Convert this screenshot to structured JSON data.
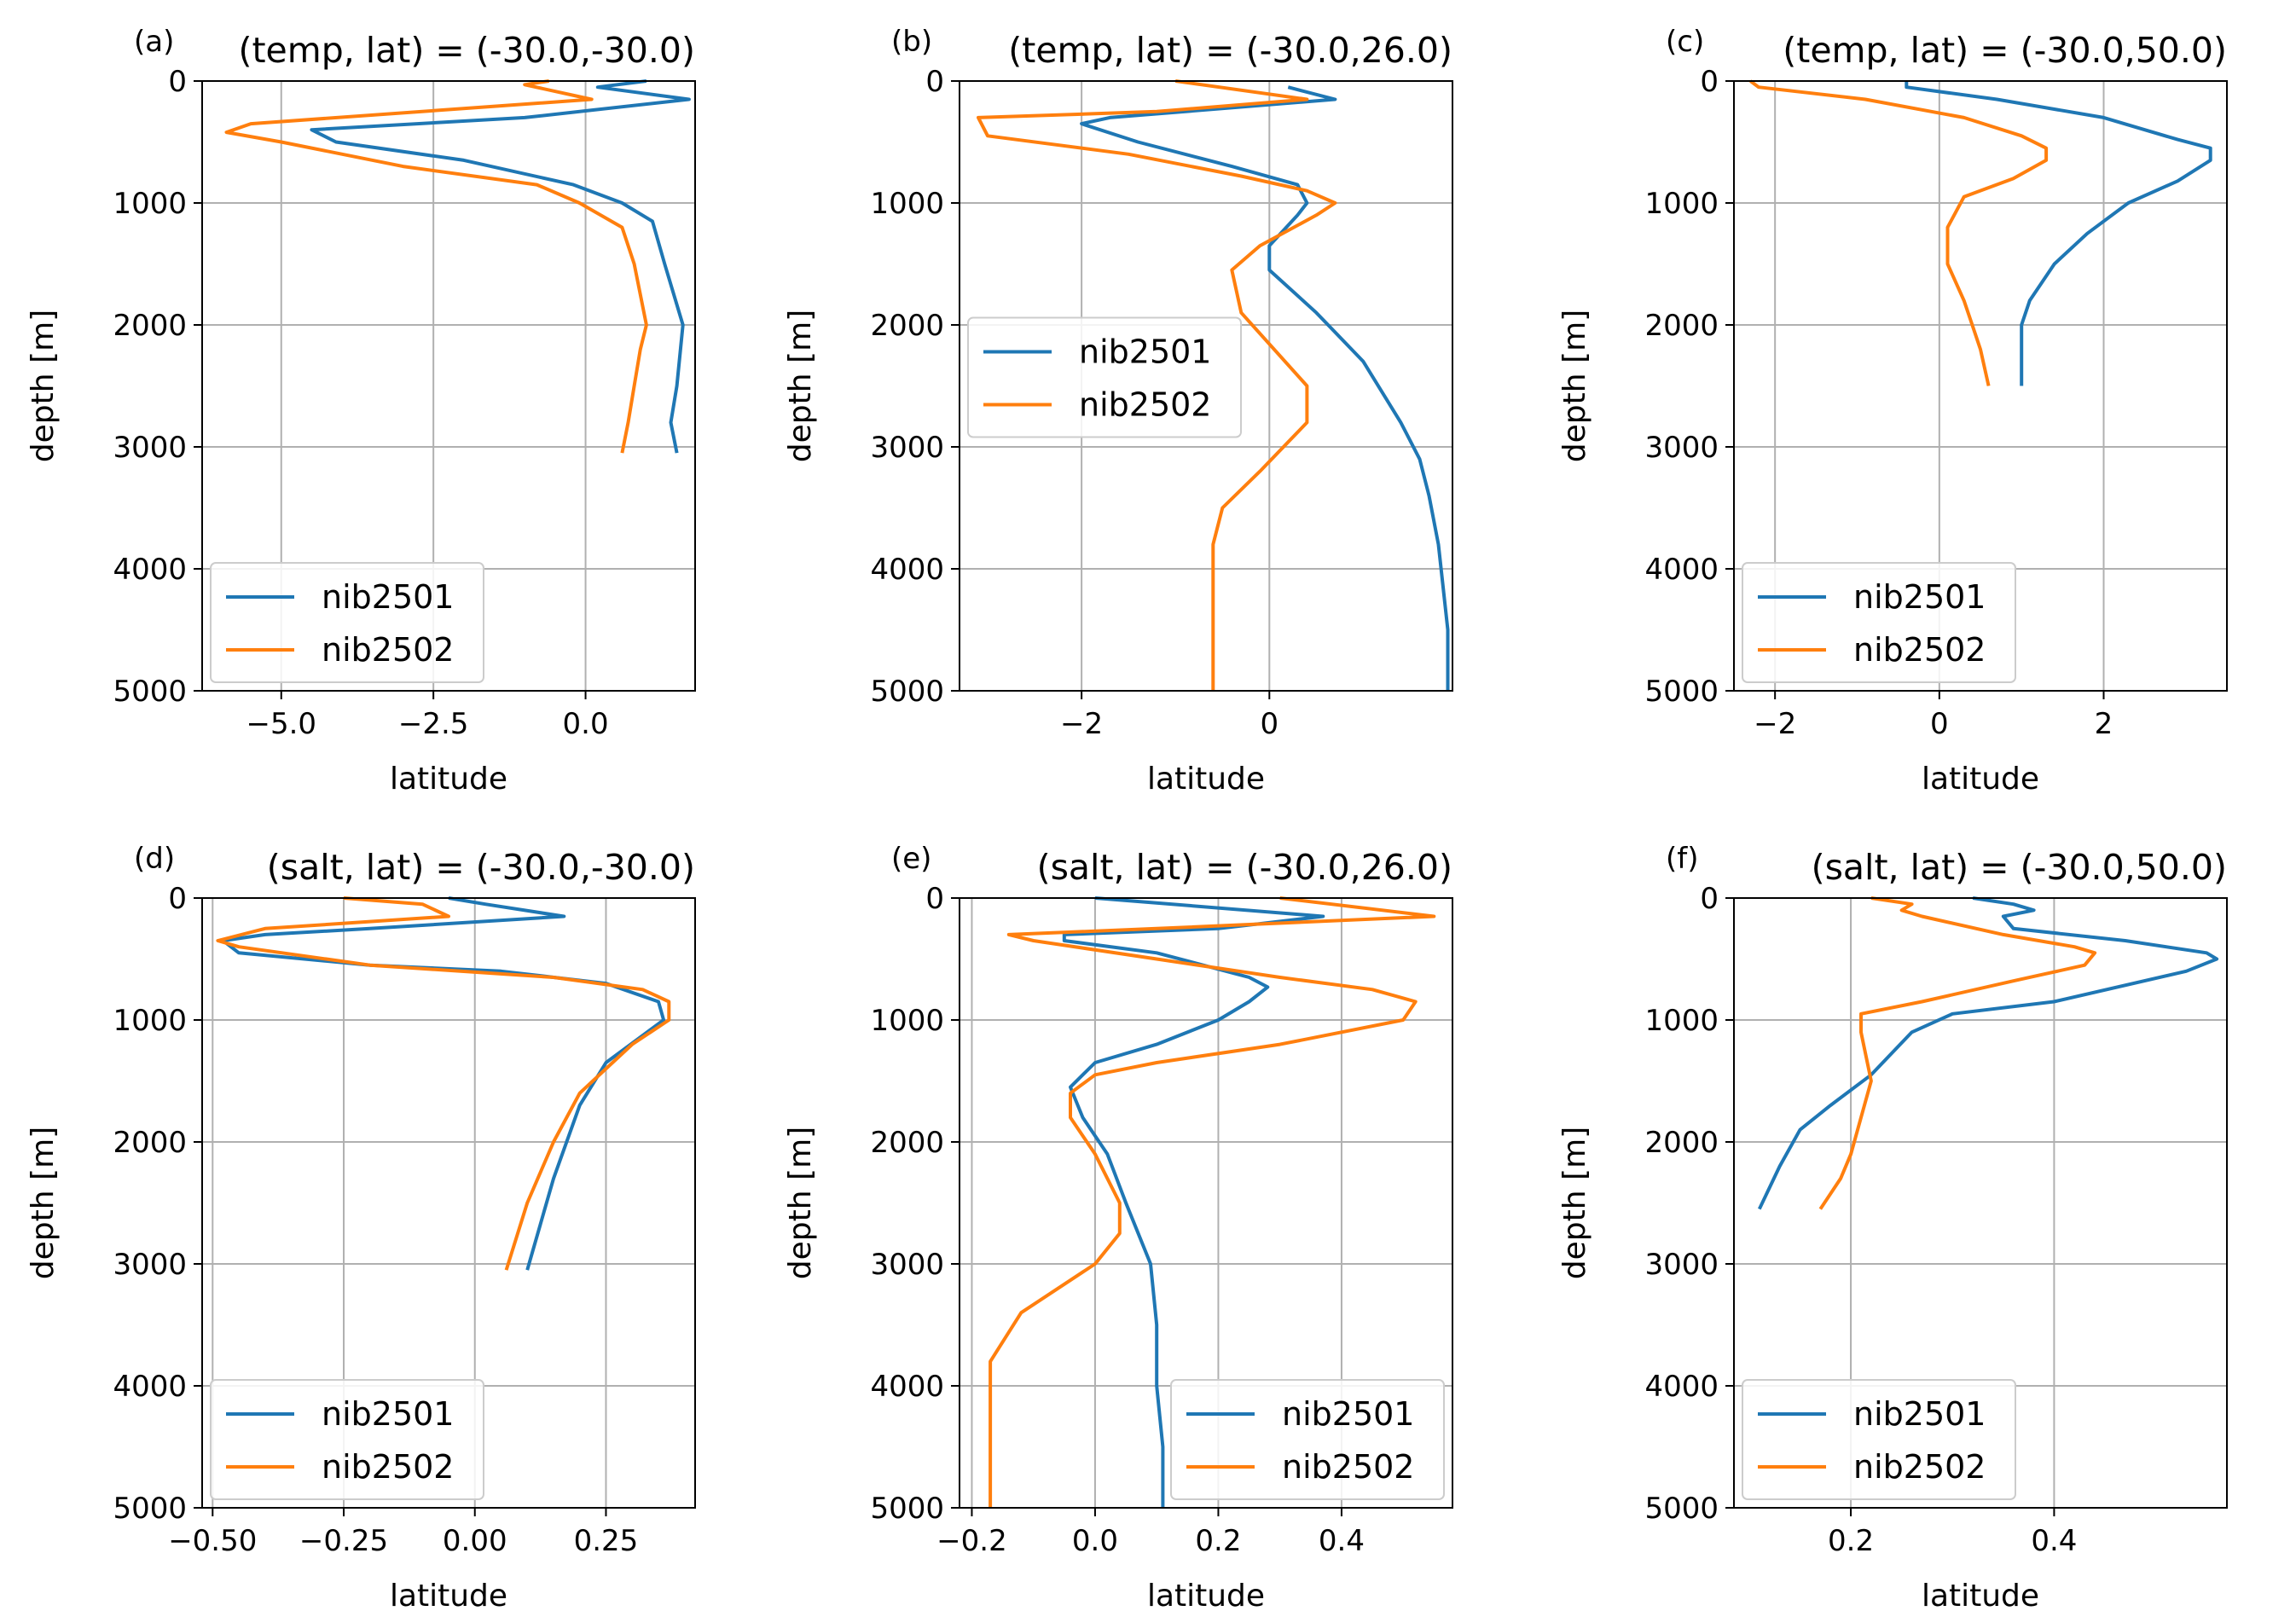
{
  "chart_data": [
    {
      "type": "line",
      "letter": "(a)",
      "title": "(temp, lat) = (-30.0,-30.0)",
      "xlabel": "latitude",
      "ylabel": "depth [m]",
      "xlim": [
        -6.3,
        1.8
      ],
      "ylim": [
        5000,
        0
      ],
      "xticks": [
        -5.0,
        -2.5,
        0.0
      ],
      "xtick_labels": [
        "−5.0",
        "−2.5",
        "0.0"
      ],
      "yticks": [
        0,
        1000,
        2000,
        3000,
        4000,
        5000
      ],
      "ytick_labels": [
        "0",
        "1000",
        "2000",
        "3000",
        "4000",
        "5000"
      ],
      "grid": true,
      "legend": "lower-left",
      "series": [
        {
          "name": "nib2501",
          "color": "#1f77b4",
          "points": [
            [
              1.0,
              0
            ],
            [
              0.2,
              50
            ],
            [
              1.7,
              150
            ],
            [
              -1.0,
              300
            ],
            [
              -4.5,
              400
            ],
            [
              -4.1,
              500
            ],
            [
              -2.0,
              650
            ],
            [
              -0.2,
              850
            ],
            [
              0.6,
              1000
            ],
            [
              1.1,
              1150
            ],
            [
              1.3,
              1500
            ],
            [
              1.6,
              2000
            ],
            [
              1.5,
              2500
            ],
            [
              1.4,
              2800
            ],
            [
              1.5,
              3050
            ]
          ]
        },
        {
          "name": "nib2502",
          "color": "#ff7f0e",
          "points": [
            [
              -0.6,
              0
            ],
            [
              -1.0,
              30
            ],
            [
              0.1,
              150
            ],
            [
              -5.5,
              350
            ],
            [
              -5.9,
              420
            ],
            [
              -5.0,
              500
            ],
            [
              -3.0,
              700
            ],
            [
              -0.8,
              850
            ],
            [
              -0.1,
              1000
            ],
            [
              0.6,
              1200
            ],
            [
              0.8,
              1500
            ],
            [
              1.0,
              2000
            ],
            [
              0.9,
              2200
            ],
            [
              0.8,
              2500
            ],
            [
              0.7,
              2800
            ],
            [
              0.6,
              3050
            ]
          ]
        }
      ]
    },
    {
      "type": "line",
      "letter": "(b)",
      "title": "(temp, lat) = (-30.0,26.0)",
      "xlabel": "latitude",
      "ylabel": "depth [m]",
      "xlim": [
        -3.3,
        1.95
      ],
      "ylim": [
        5000,
        0
      ],
      "xticks": [
        -2,
        0
      ],
      "xtick_labels": [
        "−2",
        "0"
      ],
      "yticks": [
        0,
        1000,
        2000,
        3000,
        4000,
        5000
      ],
      "ytick_labels": [
        "0",
        "1000",
        "2000",
        "3000",
        "4000",
        "5000"
      ],
      "grid": true,
      "legend": "center-left",
      "series": [
        {
          "name": "nib2501",
          "color": "#1f77b4",
          "points": [
            [
              0.2,
              50
            ],
            [
              0.7,
              150
            ],
            [
              -1.7,
              300
            ],
            [
              -2.0,
              350
            ],
            [
              -1.4,
              500
            ],
            [
              -0.4,
              700
            ],
            [
              0.3,
              850
            ],
            [
              0.4,
              1000
            ],
            [
              0.3,
              1100
            ],
            [
              0.0,
              1350
            ],
            [
              0.0,
              1550
            ],
            [
              0.5,
              1900
            ],
            [
              1.0,
              2300
            ],
            [
              1.4,
              2800
            ],
            [
              1.6,
              3100
            ],
            [
              1.7,
              3400
            ],
            [
              1.8,
              3800
            ],
            [
              1.9,
              4500
            ],
            [
              1.9,
              5000
            ]
          ]
        },
        {
          "name": "nib2502",
          "color": "#ff7f0e",
          "points": [
            [
              -1.0,
              0
            ],
            [
              0.4,
              150
            ],
            [
              -1.2,
              250
            ],
            [
              -3.1,
              300
            ],
            [
              -3.0,
              450
            ],
            [
              -1.5,
              600
            ],
            [
              -0.3,
              780
            ],
            [
              0.4,
              900
            ],
            [
              0.7,
              1000
            ],
            [
              0.5,
              1100
            ],
            [
              -0.1,
              1350
            ],
            [
              -0.4,
              1550
            ],
            [
              -0.3,
              1900
            ],
            [
              0.4,
              2500
            ],
            [
              0.4,
              2800
            ],
            [
              -0.1,
              3200
            ],
            [
              -0.5,
              3500
            ],
            [
              -0.6,
              3800
            ],
            [
              -0.6,
              4200
            ],
            [
              -0.6,
              5000
            ]
          ]
        }
      ]
    },
    {
      "type": "line",
      "letter": "(c)",
      "title": "(temp, lat) = (-30.0,50.0)",
      "xlabel": "latitude",
      "ylabel": "depth [m]",
      "xlim": [
        -2.5,
        3.5
      ],
      "ylim": [
        5000,
        0
      ],
      "xticks": [
        -2,
        0,
        2
      ],
      "xtick_labels": [
        "−2",
        "0",
        "2"
      ],
      "yticks": [
        0,
        1000,
        2000,
        3000,
        4000,
        5000
      ],
      "ytick_labels": [
        "0",
        "1000",
        "2000",
        "3000",
        "4000",
        "5000"
      ],
      "grid": true,
      "legend": "lower-left",
      "series": [
        {
          "name": "nib2501",
          "color": "#1f77b4",
          "points": [
            [
              -0.4,
              0
            ],
            [
              -0.4,
              50
            ],
            [
              0.7,
              150
            ],
            [
              2.0,
              300
            ],
            [
              2.9,
              480
            ],
            [
              3.3,
              550
            ],
            [
              3.3,
              650
            ],
            [
              2.9,
              820
            ],
            [
              2.3,
              1000
            ],
            [
              1.8,
              1250
            ],
            [
              1.4,
              1500
            ],
            [
              1.1,
              1800
            ],
            [
              1.0,
              2000
            ],
            [
              1.0,
              2200
            ],
            [
              1.0,
              2500
            ]
          ]
        },
        {
          "name": "nib2502",
          "color": "#ff7f0e",
          "points": [
            [
              -2.3,
              0
            ],
            [
              -2.2,
              50
            ],
            [
              -0.9,
              150
            ],
            [
              0.3,
              300
            ],
            [
              1.0,
              450
            ],
            [
              1.3,
              550
            ],
            [
              1.3,
              650
            ],
            [
              0.9,
              800
            ],
            [
              0.3,
              950
            ],
            [
              0.1,
              1200
            ],
            [
              0.1,
              1500
            ],
            [
              0.3,
              1800
            ],
            [
              0.4,
              2000
            ],
            [
              0.5,
              2200
            ],
            [
              0.6,
              2500
            ]
          ]
        }
      ]
    },
    {
      "type": "line",
      "letter": "(d)",
      "title": "(salt, lat) = (-30.0,-30.0)",
      "xlabel": "latitude",
      "ylabel": "depth [m]",
      "xlim": [
        -0.52,
        0.42
      ],
      "ylim": [
        5000,
        0
      ],
      "xticks": [
        -0.5,
        -0.25,
        0.0,
        0.25
      ],
      "xtick_labels": [
        "−0.50",
        "−0.25",
        "0.00",
        "0.25"
      ],
      "yticks": [
        0,
        1000,
        2000,
        3000,
        4000,
        5000
      ],
      "ytick_labels": [
        "0",
        "1000",
        "2000",
        "3000",
        "4000",
        "5000"
      ],
      "grid": true,
      "legend": "lower-left",
      "series": [
        {
          "name": "nib2501",
          "color": "#1f77b4",
          "points": [
            [
              -0.05,
              0
            ],
            [
              0.02,
              50
            ],
            [
              0.17,
              150
            ],
            [
              -0.2,
              250
            ],
            [
              -0.4,
              300
            ],
            [
              -0.48,
              350
            ],
            [
              -0.45,
              450
            ],
            [
              -0.2,
              550
            ],
            [
              0.05,
              600
            ],
            [
              0.25,
              700
            ],
            [
              0.35,
              850
            ],
            [
              0.36,
              1000
            ],
            [
              0.25,
              1350
            ],
            [
              0.2,
              1700
            ],
            [
              0.15,
              2300
            ],
            [
              0.1,
              3050
            ]
          ]
        },
        {
          "name": "nib2502",
          "color": "#ff7f0e",
          "points": [
            [
              -0.25,
              0
            ],
            [
              -0.1,
              50
            ],
            [
              -0.05,
              150
            ],
            [
              -0.4,
              250
            ],
            [
              -0.49,
              350
            ],
            [
              -0.45,
              400
            ],
            [
              -0.2,
              550
            ],
            [
              0.15,
              650
            ],
            [
              0.32,
              750
            ],
            [
              0.37,
              850
            ],
            [
              0.37,
              1000
            ],
            [
              0.3,
              1200
            ],
            [
              0.2,
              1600
            ],
            [
              0.15,
              2000
            ],
            [
              0.1,
              2500
            ],
            [
              0.06,
              3050
            ]
          ]
        }
      ]
    },
    {
      "type": "line",
      "letter": "(e)",
      "title": "(salt, lat) = (-30.0,26.0)",
      "xlabel": "latitude",
      "ylabel": "depth [m]",
      "xlim": [
        -0.22,
        0.58
      ],
      "ylim": [
        5000,
        0
      ],
      "xticks": [
        -0.2,
        0.0,
        0.2,
        0.4
      ],
      "xtick_labels": [
        "−0.2",
        "0.0",
        "0.2",
        "0.4"
      ],
      "yticks": [
        0,
        1000,
        2000,
        3000,
        4000,
        5000
      ],
      "ytick_labels": [
        "0",
        "1000",
        "2000",
        "3000",
        "4000",
        "5000"
      ],
      "grid": true,
      "legend": "lower-right",
      "series": [
        {
          "name": "nib2501",
          "color": "#1f77b4",
          "points": [
            [
              0.0,
              0
            ],
            [
              0.37,
              150
            ],
            [
              0.2,
              250
            ],
            [
              -0.05,
              300
            ],
            [
              -0.05,
              350
            ],
            [
              0.1,
              450
            ],
            [
              0.25,
              650
            ],
            [
              0.28,
              730
            ],
            [
              0.25,
              850
            ],
            [
              0.2,
              1000
            ],
            [
              0.1,
              1200
            ],
            [
              0.0,
              1350
            ],
            [
              -0.04,
              1550
            ],
            [
              -0.02,
              1800
            ],
            [
              0.02,
              2100
            ],
            [
              0.05,
              2500
            ],
            [
              0.09,
              3000
            ],
            [
              0.1,
              3500
            ],
            [
              0.1,
              4000
            ],
            [
              0.11,
              4500
            ],
            [
              0.11,
              5000
            ]
          ]
        },
        {
          "name": "nib2502",
          "color": "#ff7f0e",
          "points": [
            [
              0.3,
              0
            ],
            [
              0.55,
              150
            ],
            [
              0.1,
              250
            ],
            [
              -0.14,
              300
            ],
            [
              -0.1,
              350
            ],
            [
              0.1,
              500
            ],
            [
              0.3,
              650
            ],
            [
              0.45,
              750
            ],
            [
              0.52,
              850
            ],
            [
              0.5,
              1000
            ],
            [
              0.3,
              1200
            ],
            [
              0.1,
              1350
            ],
            [
              0.0,
              1450
            ],
            [
              -0.04,
              1600
            ],
            [
              -0.04,
              1800
            ],
            [
              0.0,
              2100
            ],
            [
              0.04,
              2500
            ],
            [
              0.04,
              2750
            ],
            [
              0.0,
              3000
            ],
            [
              -0.12,
              3400
            ],
            [
              -0.17,
              3800
            ],
            [
              -0.17,
              4200
            ],
            [
              -0.17,
              5000
            ]
          ]
        }
      ]
    },
    {
      "type": "line",
      "letter": "(f)",
      "title": "(salt, lat) = (-30.0,50.0)",
      "xlabel": "latitude",
      "ylabel": "depth [m]",
      "xlim": [
        0.085,
        0.57
      ],
      "ylim": [
        5000,
        0
      ],
      "xticks": [
        0.2,
        0.4
      ],
      "xtick_labels": [
        "0.2",
        "0.4"
      ],
      "yticks": [
        0,
        1000,
        2000,
        3000,
        4000,
        5000
      ],
      "ytick_labels": [
        "0",
        "1000",
        "2000",
        "3000",
        "4000",
        "5000"
      ],
      "grid": true,
      "legend": "lower-left",
      "series": [
        {
          "name": "nib2501",
          "color": "#1f77b4",
          "points": [
            [
              0.32,
              0
            ],
            [
              0.36,
              50
            ],
            [
              0.38,
              100
            ],
            [
              0.35,
              150
            ],
            [
              0.36,
              250
            ],
            [
              0.47,
              350
            ],
            [
              0.55,
              450
            ],
            [
              0.56,
              500
            ],
            [
              0.53,
              600
            ],
            [
              0.4,
              850
            ],
            [
              0.3,
              950
            ],
            [
              0.26,
              1100
            ],
            [
              0.22,
              1450
            ],
            [
              0.18,
              1700
            ],
            [
              0.15,
              1900
            ],
            [
              0.13,
              2200
            ],
            [
              0.11,
              2550
            ]
          ]
        },
        {
          "name": "nib2502",
          "color": "#ff7f0e",
          "points": [
            [
              0.22,
              0
            ],
            [
              0.26,
              50
            ],
            [
              0.25,
              100
            ],
            [
              0.27,
              150
            ],
            [
              0.35,
              300
            ],
            [
              0.42,
              400
            ],
            [
              0.44,
              450
            ],
            [
              0.43,
              550
            ],
            [
              0.36,
              680
            ],
            [
              0.27,
              850
            ],
            [
              0.21,
              950
            ],
            [
              0.21,
              1100
            ],
            [
              0.22,
              1500
            ],
            [
              0.21,
              1800
            ],
            [
              0.2,
              2100
            ],
            [
              0.19,
              2300
            ],
            [
              0.17,
              2550
            ]
          ]
        }
      ]
    }
  ]
}
